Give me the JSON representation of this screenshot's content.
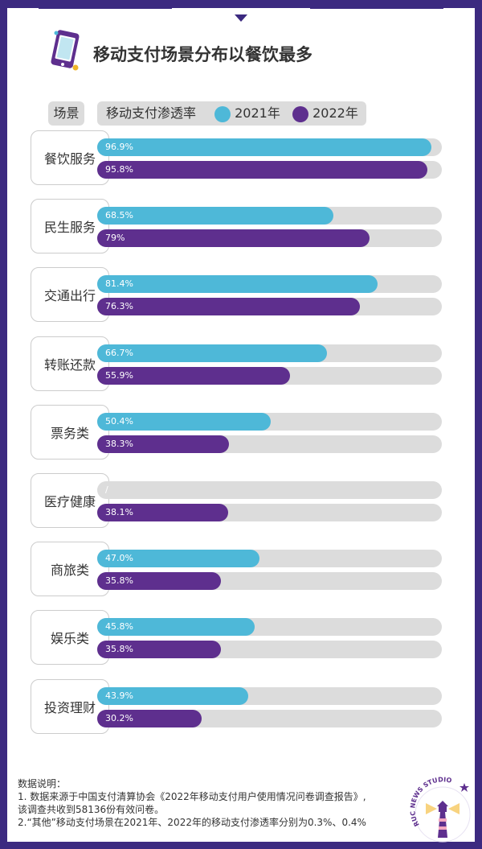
{
  "header": {
    "title": "移动支付场景分布以餐饮最多"
  },
  "legend": {
    "scene_label": "场景",
    "metric_label": "移动支付渗透率",
    "series_2021": "2021年",
    "series_2022": "2022年"
  },
  "colors": {
    "y2021": "#4eb8d8",
    "y2022": "#5e2f8e",
    "track": "#dcdcdc",
    "frame": "#3c2a80"
  },
  "chart_data": {
    "type": "bar",
    "orientation": "horizontal",
    "title": "移动支付场景分布以餐饮最多",
    "categories": [
      "餐饮服务",
      "民生服务",
      "交通出行",
      "转账还款",
      "票务类",
      "医疗健康",
      "商旅类",
      "娱乐类",
      "投资理财"
    ],
    "series": [
      {
        "name": "2021年",
        "values": [
          96.9,
          68.5,
          81.4,
          66.7,
          50.4,
          null,
          47.0,
          45.8,
          43.9
        ],
        "labels": [
          "96.9%",
          "68.5%",
          "81.4%",
          "66.7%",
          "50.4%",
          "/",
          "47.0%",
          "45.8%",
          "43.9%"
        ]
      },
      {
        "name": "2022年",
        "values": [
          95.8,
          79,
          76.3,
          55.9,
          38.3,
          38.1,
          35.8,
          35.8,
          30.2
        ],
        "labels": [
          "95.8%",
          "79%",
          "76.3%",
          "55.9%",
          "38.3%",
          "38.1%",
          "35.8%",
          "35.8%",
          "30.2%"
        ]
      }
    ],
    "xlim": [
      0,
      100
    ],
    "grid": false,
    "legend_position": "top"
  },
  "notes": {
    "heading": "数据说明：",
    "line1": "1. 数据来源于中国支付清算协会《2022年移动支付用户使用情况问卷调查报告》,",
    "line2": "该调查共收到58136份有效问卷。",
    "line3": "2.“其他”移动支付场景在2021年、2022年的移动支付渗透率分别为0.3%、0.4%"
  },
  "badge": {
    "text": "RUC NEWS STUDIO"
  }
}
